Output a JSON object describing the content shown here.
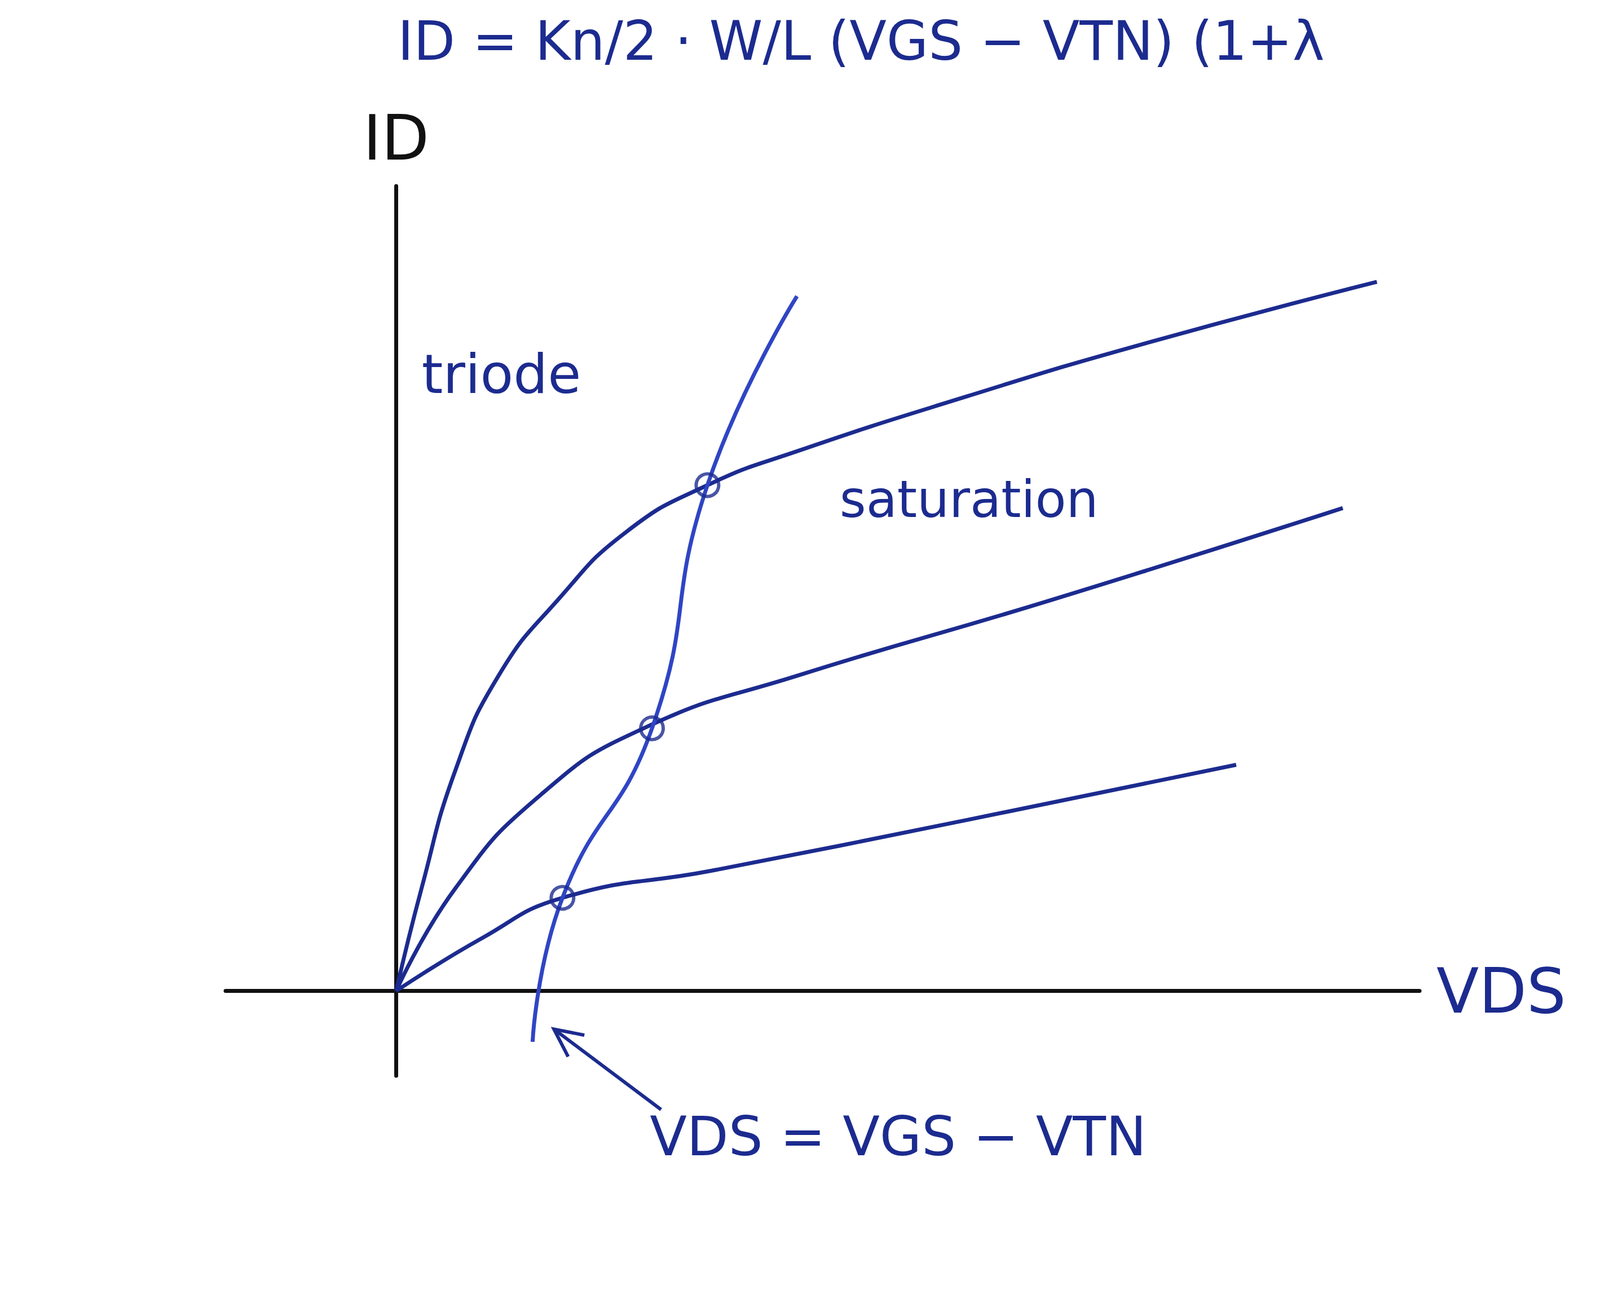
{
  "chart_data": {
    "type": "line",
    "title": "ID = Kn/2 · W/L (VGS − VTN) (1+λ",
    "x_label": "VDS",
    "y_label": "ID",
    "xlim": [
      -2,
      12
    ],
    "ylim": [
      -1,
      9.5
    ],
    "tick_labels": false,
    "grid": false,
    "series": [
      {
        "color": "#1c2b8f",
        "line_style": "solid",
        "x": [
          0,
          0.3,
          0.7,
          1.2,
          1.9,
          2.7,
          3.65,
          4.7,
          6.7,
          8.7,
          11.5
        ],
        "values": [
          0,
          1.22,
          2.62,
          3.72,
          4.62,
          5.42,
          5.97,
          6.37,
          7.02,
          7.62,
          8.37
        ]
      },
      {
        "color": "#1c2b8f",
        "line_style": "solid",
        "x": [
          0,
          0.7,
          1.7,
          2.9,
          4.7,
          7.7,
          11.1
        ],
        "values": [
          0,
          1.22,
          2.32,
          3.1,
          3.72,
          4.62,
          5.7
        ]
      },
      {
        "color": "#1c2b8f",
        "line_style": "solid",
        "x": [
          0,
          1,
          1.95,
          3.7,
          6.7,
          9.85
        ],
        "values": [
          0,
          0.62,
          1.1,
          1.42,
          2.02,
          2.67
        ]
      },
      {
        "color": "#2f45c4",
        "line_style": "solid",
        "x": [
          1.6,
          1.95,
          3.0,
          3.65,
          4.7
        ],
        "values": [
          -0.6,
          1.1,
          3.1,
          5.97,
          8.2
        ]
      },
      {
        "type": "scatter",
        "marker": "circle",
        "color": "#1c2b8f",
        "x": [
          1.95,
          3.0,
          3.65
        ],
        "values": [
          1.1,
          3.1,
          5.97
        ]
      }
    ],
    "annotations": [
      {
        "text": "triode"
      },
      {
        "text": "saturation"
      },
      {
        "text": "VDS = VGS − VTN"
      }
    ]
  }
}
